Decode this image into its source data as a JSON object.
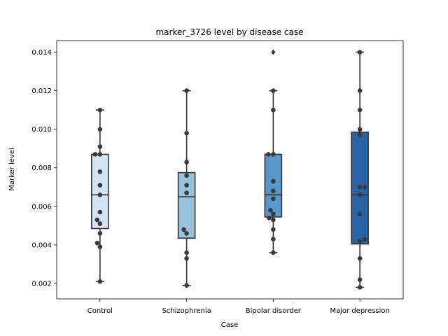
{
  "chart_data": {
    "type": "box",
    "title": "marker_3726 level by disease case",
    "xlabel": "Case",
    "ylabel": "Marker level",
    "ylim": [
      0.0012,
      0.0146
    ],
    "yticks": [
      "0.002",
      "0.004",
      "0.006",
      "0.008",
      "0.010",
      "0.012",
      "0.014"
    ],
    "ytick_values": [
      0.002,
      0.004,
      0.006,
      0.008,
      0.01,
      0.012,
      0.014
    ],
    "grid": false,
    "categories": [
      "Control",
      "Schizophrenia",
      "Bipolar disorder",
      "Major depression"
    ],
    "colors": [
      "#d4e3f2",
      "#97c3dd",
      "#5797c9",
      "#2863a5"
    ],
    "boxes": [
      {
        "name": "Control",
        "q1": 0.00485,
        "median": 0.0066,
        "q3": 0.0087,
        "whisker_low": 0.0021,
        "whisker_high": 0.011,
        "outliers": []
      },
      {
        "name": "Schizophrenia",
        "q1": 0.00435,
        "median": 0.0065,
        "q3": 0.00775,
        "whisker_low": 0.0019,
        "whisker_high": 0.012,
        "outliers": []
      },
      {
        "name": "Bipolar disorder",
        "q1": 0.00545,
        "median": 0.0066,
        "q3": 0.0087,
        "whisker_low": 0.0036,
        "whisker_high": 0.012,
        "outliers": [
          0.014
        ]
      },
      {
        "name": "Major depression",
        "q1": 0.00405,
        "median": 0.0066,
        "q3": 0.00985,
        "whisker_low": 0.0018,
        "whisker_high": 0.014,
        "outliers": []
      }
    ],
    "points": [
      [
        {
          "dx": 0,
          "y": 0.011
        },
        {
          "dx": 0,
          "y": 0.01
        },
        {
          "dx": 0,
          "y": 0.0091
        },
        {
          "dx": -7,
          "y": 0.0087
        },
        {
          "dx": 0,
          "y": 0.0087
        },
        {
          "dx": 0,
          "y": 0.0078
        },
        {
          "dx": 0,
          "y": 0.0071
        },
        {
          "dx": 0,
          "y": 0.0066
        },
        {
          "dx": 0,
          "y": 0.0057
        },
        {
          "dx": -4,
          "y": 0.0053
        },
        {
          "dx": 0,
          "y": 0.0051
        },
        {
          "dx": 0,
          "y": 0.0046
        },
        {
          "dx": -4,
          "y": 0.0041
        },
        {
          "dx": 0,
          "y": 0.0039
        },
        {
          "dx": 0,
          "y": 0.0021
        }
      ],
      [
        {
          "dx": 0,
          "y": 0.012
        },
        {
          "dx": 0,
          "y": 0.0098
        },
        {
          "dx": 0,
          "y": 0.0083
        },
        {
          "dx": 0,
          "y": 0.0076
        },
        {
          "dx": 0,
          "y": 0.0071
        },
        {
          "dx": 0,
          "y": 0.0067
        },
        {
          "dx": -4,
          "y": 0.0048
        },
        {
          "dx": 0,
          "y": 0.0046
        },
        {
          "dx": 0,
          "y": 0.0036
        },
        {
          "dx": 0,
          "y": 0.0033
        },
        {
          "dx": 0,
          "y": 0.0019
        }
      ],
      [
        {
          "dx": 0,
          "y": 0.012
        },
        {
          "dx": 0,
          "y": 0.011
        },
        {
          "dx": -7,
          "y": 0.0087
        },
        {
          "dx": 0,
          "y": 0.0087
        },
        {
          "dx": 0,
          "y": 0.0073
        },
        {
          "dx": 0,
          "y": 0.0068
        },
        {
          "dx": 0,
          "y": 0.0064
        },
        {
          "dx": -4,
          "y": 0.0058
        },
        {
          "dx": 0,
          "y": 0.0056
        },
        {
          "dx": -6,
          "y": 0.0054
        },
        {
          "dx": 0,
          "y": 0.0053
        },
        {
          "dx": 0,
          "y": 0.0048
        },
        {
          "dx": 0,
          "y": 0.0043
        },
        {
          "dx": 0,
          "y": 0.0036
        }
      ],
      [
        {
          "dx": 0,
          "y": 0.014
        },
        {
          "dx": 0,
          "y": 0.012
        },
        {
          "dx": 0,
          "y": 0.011
        },
        {
          "dx": 0,
          "y": 0.01
        },
        {
          "dx": 0,
          "y": 0.0097
        },
        {
          "dx": 0,
          "y": 0.007
        },
        {
          "dx": 7,
          "y": 0.007
        },
        {
          "dx": 0,
          "y": 0.0066
        },
        {
          "dx": 0,
          "y": 0.0056
        },
        {
          "dx": 7,
          "y": 0.0043
        },
        {
          "dx": 0,
          "y": 0.0042
        },
        {
          "dx": 0,
          "y": 0.0033
        },
        {
          "dx": 0,
          "y": 0.0022
        },
        {
          "dx": 0,
          "y": 0.0018
        }
      ]
    ]
  }
}
